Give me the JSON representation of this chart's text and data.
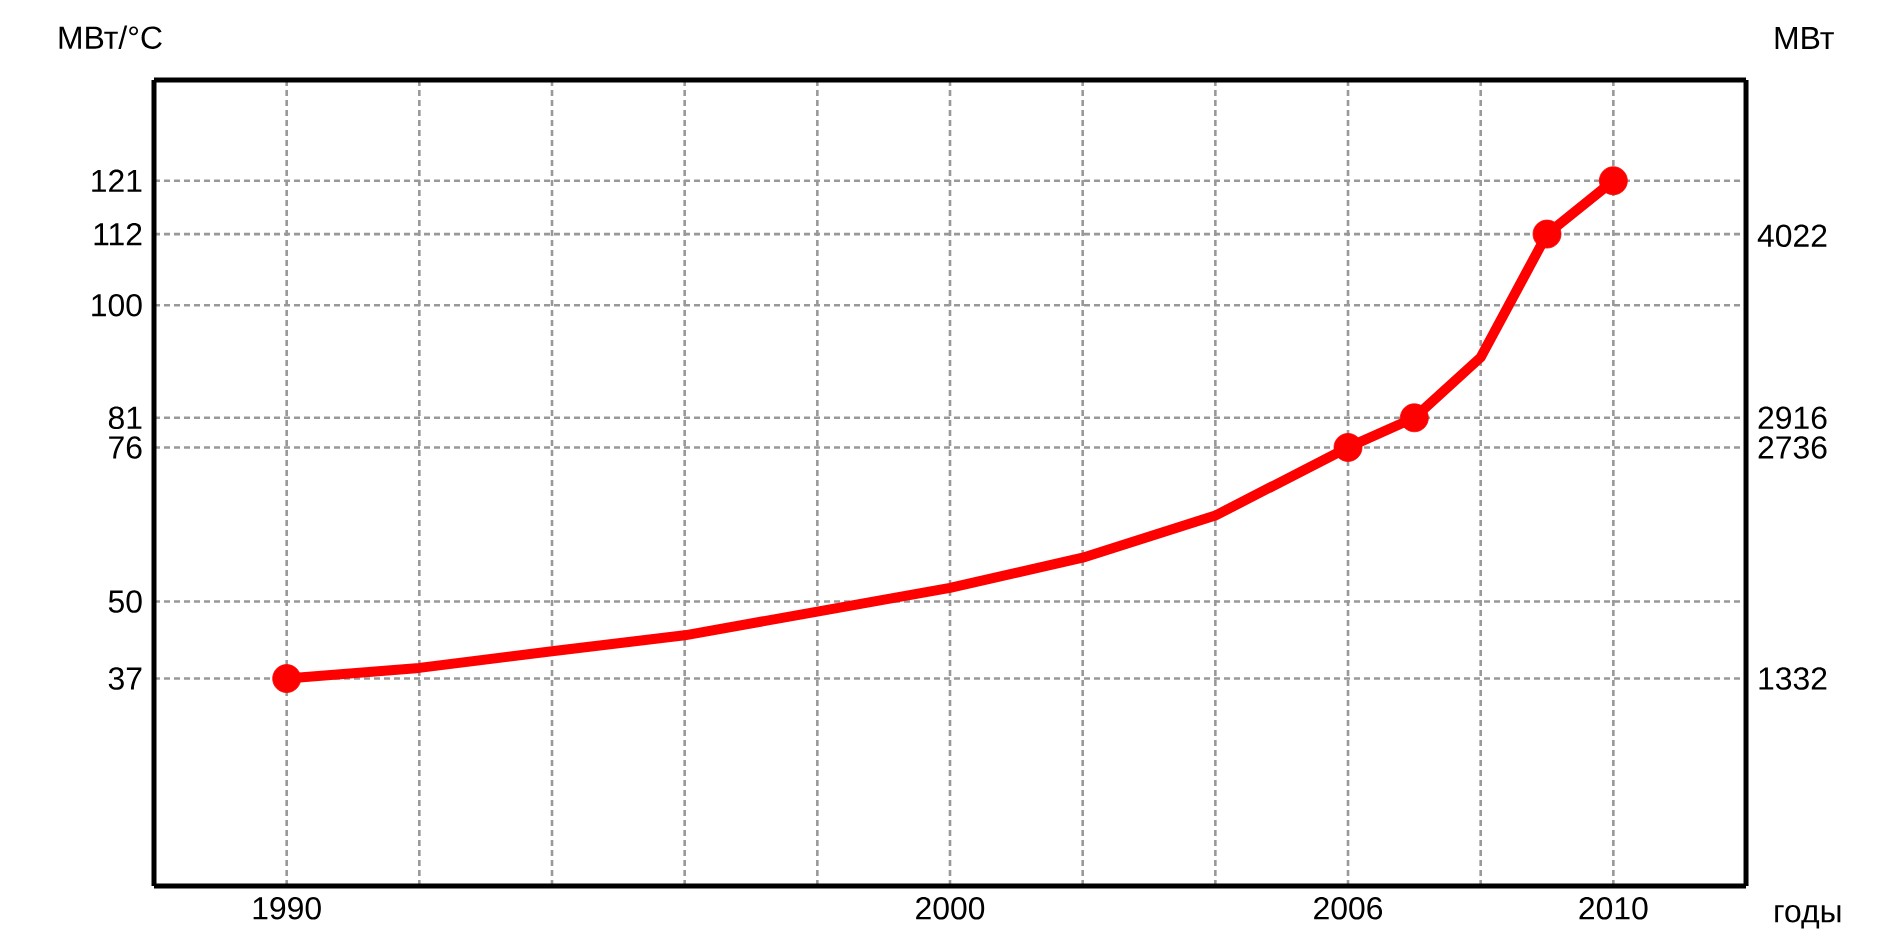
{
  "chart_data": {
    "type": "line",
    "xlabel": "годы",
    "ylabel": "МВт/°C",
    "y2label": "МВт",
    "xlim": [
      1988,
      2012
    ],
    "xticks": [
      1990,
      {
        "value": 1992,
        "label": null
      },
      {
        "value": 1994,
        "label": null
      },
      {
        "value": 1996,
        "label": null
      },
      {
        "value": 1998,
        "label": null
      },
      2000,
      {
        "value": 2002,
        "label": null
      },
      {
        "value": 2004,
        "label": null
      },
      2006,
      {
        "value": 2008,
        "label": null
      },
      2010
    ],
    "ylim": [
      2,
      138
    ],
    "yticks": [
      37,
      50,
      76,
      81,
      100,
      112,
      121
    ],
    "y2lim": [
      72,
      4968
    ],
    "y2ticks": [
      1332,
      2736,
      2916,
      4022
    ],
    "grid": true,
    "series": [
      {
        "color": "#ff0000",
        "marker": "none",
        "line_style": "solid",
        "x": [
          1990,
          1992,
          1994,
          1996,
          1998,
          2000,
          2002,
          2004,
          2006,
          2007,
          2008,
          2009,
          2010
        ],
        "values": [
          37,
          38.8,
          41.6,
          44.3,
          48.3,
          52.3,
          57.4,
          64.5,
          76,
          81,
          91.2,
          112,
          121
        ]
      },
      {
        "type": "scatter",
        "color": "#ff0000",
        "marker": "circle",
        "x": [
          1990,
          2006,
          2007,
          2009,
          2010
        ],
        "values": [
          37,
          76,
          81,
          112,
          121
        ]
      }
    ]
  }
}
